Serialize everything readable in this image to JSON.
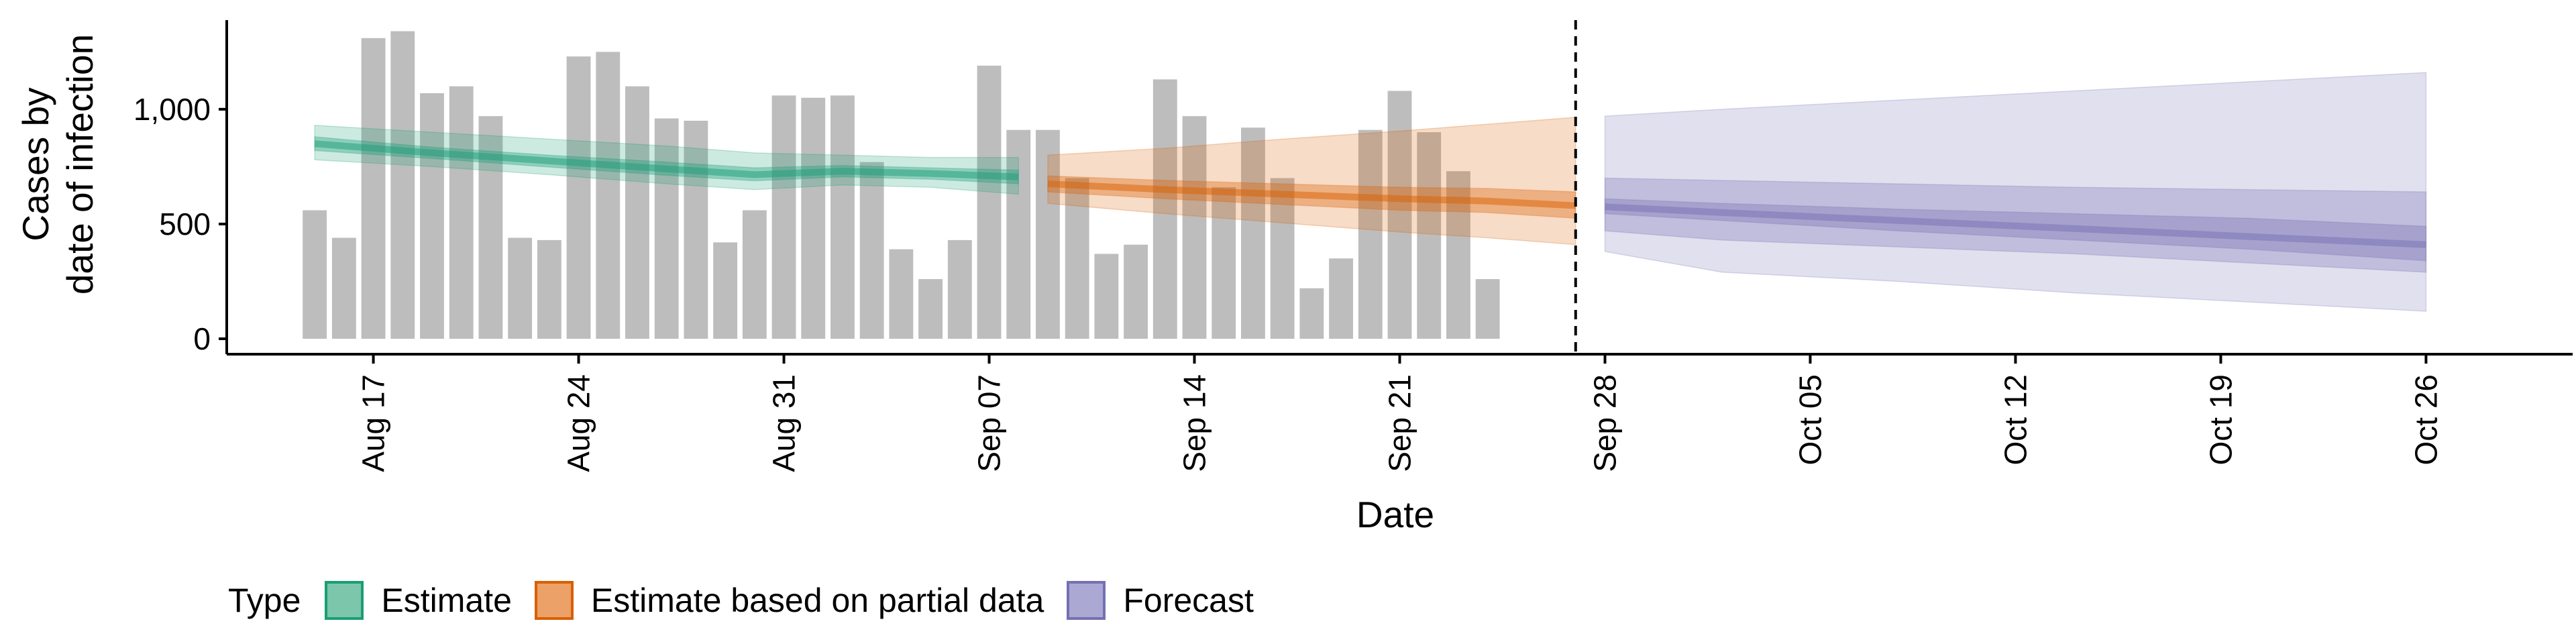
{
  "chart_data": {
    "type": "bar+ribbon",
    "xlabel": "Date",
    "ylabel_lines": [
      "Cases by",
      "date of infection"
    ],
    "ylim": [
      0,
      1400
    ],
    "xlim": [
      "2020-08-12",
      "2020-10-31"
    ],
    "y_ticks": [
      0,
      500,
      1000
    ],
    "y_tick_labels": [
      "0",
      "500",
      "1,000"
    ],
    "x_ticks": [
      "2020-08-17",
      "2020-08-24",
      "2020-08-31",
      "2020-09-07",
      "2020-09-14",
      "2020-09-21",
      "2020-09-28",
      "2020-10-05",
      "2020-10-12",
      "2020-10-19",
      "2020-10-26"
    ],
    "x_tick_labels": [
      "Aug 17",
      "Aug 24",
      "Aug 31",
      "Sep 07",
      "Sep 14",
      "Sep 21",
      "Sep 28",
      "Oct 05",
      "Oct 12",
      "Oct 19",
      "Oct 26"
    ],
    "vline_date": "2020-09-27",
    "grid": false,
    "bars": {
      "start_date": "2020-08-15",
      "color": "#bdbdbd",
      "values": [
        560,
        440,
        1310,
        1340,
        1070,
        1100,
        970,
        440,
        430,
        1230,
        1250,
        1100,
        960,
        950,
        420,
        560,
        1060,
        1050,
        1060,
        770,
        390,
        260,
        430,
        1190,
        910,
        910,
        700,
        370,
        410,
        1130,
        970,
        660,
        920,
        700,
        220,
        350,
        910,
        1080,
        900,
        730,
        260
      ]
    },
    "series": [
      {
        "name": "Estimate",
        "color": "#1b9e77",
        "fill_alpha": 0.25,
        "dates": [
          "2020-08-15",
          "2020-08-19",
          "2020-08-23",
          "2020-08-27",
          "2020-08-30",
          "2020-09-02",
          "2020-09-05",
          "2020-09-08"
        ],
        "median": [
          850,
          810,
          775,
          740,
          715,
          730,
          720,
          705
        ],
        "lower50": [
          820,
          785,
          748,
          712,
          688,
          705,
          695,
          675
        ],
        "upper50": [
          880,
          835,
          800,
          770,
          745,
          755,
          745,
          735
        ],
        "lower90": [
          780,
          750,
          715,
          675,
          650,
          670,
          660,
          630
        ],
        "upper90": [
          930,
          900,
          870,
          840,
          810,
          800,
          790,
          790
        ]
      },
      {
        "name": "Estimate based on partial data",
        "color": "#d95f02",
        "fill_alpha": 0.25,
        "dates": [
          "2020-09-09",
          "2020-09-13",
          "2020-09-17",
          "2020-09-21",
          "2020-09-24",
          "2020-09-27"
        ],
        "median": [
          675,
          650,
          630,
          610,
          600,
          580
        ],
        "lower50": [
          640,
          610,
          585,
          560,
          550,
          525
        ],
        "upper50": [
          710,
          690,
          675,
          660,
          655,
          640
        ],
        "lower90": [
          590,
          545,
          505,
          465,
          440,
          410
        ],
        "upper90": [
          800,
          830,
          870,
          905,
          935,
          965
        ]
      },
      {
        "name": "Forecast",
        "color": "#7570b3",
        "fill_alpha": 0.25,
        "dates": [
          "2020-09-28",
          "2020-10-02",
          "2020-10-08",
          "2020-10-14",
          "2020-10-20",
          "2020-10-26"
        ],
        "median": [
          575,
          550,
          515,
          480,
          445,
          410
        ],
        "lower50": [
          545,
          515,
          470,
          430,
          390,
          340
        ],
        "upper50": [
          610,
          590,
          565,
          545,
          525,
          490
        ],
        "lower25": [
          470,
          430,
          400,
          370,
          330,
          290
        ],
        "upper75": [
          700,
          690,
          675,
          660,
          650,
          640
        ],
        "lower90": [
          380,
          290,
          250,
          200,
          160,
          120
        ],
        "upper90": [
          970,
          1000,
          1040,
          1080,
          1120,
          1160
        ]
      }
    ]
  },
  "legend": {
    "title": "Type",
    "items": [
      {
        "label": "Estimate",
        "fill": "#7cc6ab",
        "border": "#1b9e77"
      },
      {
        "label": "Estimate based on partial data",
        "fill": "#eba168",
        "border": "#d95f02"
      },
      {
        "label": "Forecast",
        "fill": "#aba9d3",
        "border": "#7570b3"
      }
    ]
  }
}
